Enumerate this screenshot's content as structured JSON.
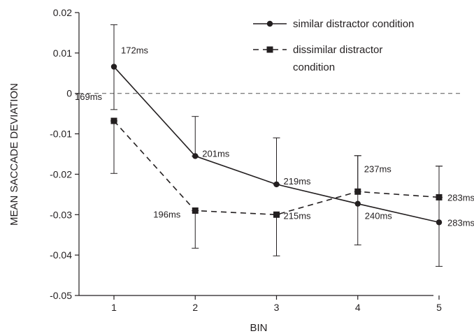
{
  "chart_data": {
    "type": "line",
    "xlabel": "BIN",
    "ylabel": "MEAN SACCADE DEVIATION",
    "x": [
      1,
      2,
      3,
      4,
      5
    ],
    "xlim": [
      0.5,
      5.5
    ],
    "ylim": [
      -0.05,
      0.02
    ],
    "yticks": [
      "0.02",
      "0.01",
      "0",
      "-0.01",
      "-0.02",
      "-0.03",
      "-0.04",
      "-0.05"
    ],
    "yticks_values": [
      0.02,
      0.01,
      0,
      -0.01,
      -0.02,
      -0.03,
      -0.04,
      -0.05
    ],
    "xticks": [
      "1",
      "2",
      "3",
      "4",
      "5"
    ],
    "zero_line": "dashed",
    "grid": false,
    "legend_position": "top-right",
    "legend_items": [
      {
        "marker": "circle",
        "line": "solid",
        "lines": [
          "similar distractor condition"
        ]
      },
      {
        "marker": "square",
        "line": "dashed",
        "lines": [
          "dissimilar distractor",
          "condition"
        ]
      }
    ],
    "series": [
      {
        "name": "similar distractor condition",
        "marker": "circle",
        "line": "solid",
        "values": [
          0.0066,
          -0.0155,
          -0.0225,
          -0.0273,
          -0.0319
        ],
        "err_upper": [
          0.017,
          -0.0057,
          -0.011,
          -0.0154,
          -0.018
        ],
        "err_lower": [
          -0.004,
          -0.0155,
          -0.0225,
          -0.0375,
          -0.0428
        ],
        "labels": [
          "172ms",
          "201ms",
          "219ms",
          "240ms",
          "283ms"
        ]
      },
      {
        "name": "dissimilar distractor condition",
        "marker": "square",
        "line": "dashed",
        "values": [
          -0.0068,
          -0.029,
          -0.03,
          -0.0243,
          -0.0257
        ],
        "err_upper": [
          -0.0068,
          -0.029,
          -0.03,
          -0.0154,
          -0.018
        ],
        "err_lower": [
          -0.0198,
          -0.0383,
          -0.0402,
          -0.0243,
          -0.0257
        ],
        "labels": [
          "169ms",
          "196ms",
          "215ms",
          "237ms",
          "283ms"
        ]
      }
    ]
  }
}
